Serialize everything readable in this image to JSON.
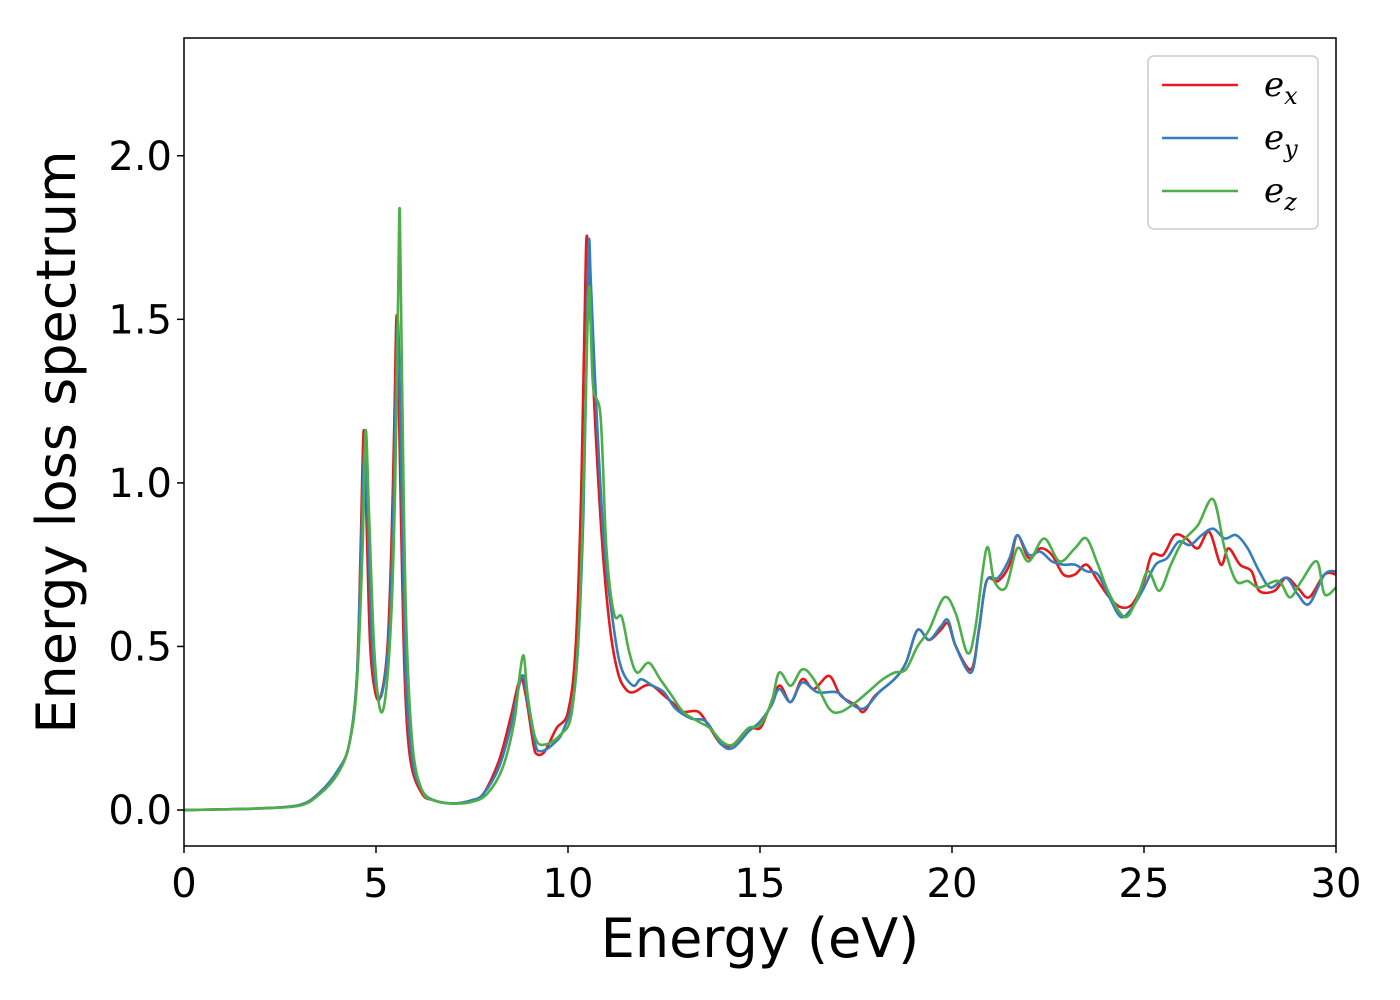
{
  "chart_data": {
    "type": "line",
    "title": "",
    "xlabel": "Energy (eV)",
    "ylabel": "Energy loss spectrum",
    "xlim": [
      0,
      30
    ],
    "ylim": [
      -0.11,
      2.36
    ],
    "xticks": [
      0,
      5,
      10,
      15,
      20,
      25,
      30
    ],
    "xtick_labels": [
      "0",
      "5",
      "10",
      "15",
      "20",
      "25",
      "30"
    ],
    "yticks": [
      0.0,
      0.5,
      1.0,
      1.5,
      2.0
    ],
    "ytick_labels": [
      "0.0",
      "0.5",
      "1.0",
      "1.5",
      "2.0"
    ],
    "grid": false,
    "legend_position": "top-right",
    "series": [
      {
        "name": "e_x",
        "label_base": "e",
        "label_sub": "x",
        "color": "#e41a1c",
        "points": [
          [
            0,
            0
          ],
          [
            1,
            0.002
          ],
          [
            2,
            0.005
          ],
          [
            3,
            0.015
          ],
          [
            3.5,
            0.05
          ],
          [
            4,
            0.12
          ],
          [
            4.3,
            0.2
          ],
          [
            4.5,
            0.4
          ],
          [
            4.6,
            0.8
          ],
          [
            4.68,
            1.16
          ],
          [
            4.75,
            0.9
          ],
          [
            4.85,
            0.5
          ],
          [
            5.0,
            0.35
          ],
          [
            5.15,
            0.36
          ],
          [
            5.3,
            0.5
          ],
          [
            5.4,
            0.8
          ],
          [
            5.48,
            1.2
          ],
          [
            5.53,
            1.5
          ],
          [
            5.57,
            1.4
          ],
          [
            5.65,
            0.9
          ],
          [
            5.75,
            0.4
          ],
          [
            5.9,
            0.15
          ],
          [
            6.2,
            0.05
          ],
          [
            6.5,
            0.03
          ],
          [
            7.0,
            0.02
          ],
          [
            7.5,
            0.03
          ],
          [
            7.8,
            0.05
          ],
          [
            8.2,
            0.15
          ],
          [
            8.5,
            0.28
          ],
          [
            8.75,
            0.4
          ],
          [
            8.9,
            0.35
          ],
          [
            9.1,
            0.2
          ],
          [
            9.2,
            0.17
          ],
          [
            9.4,
            0.18
          ],
          [
            9.7,
            0.25
          ],
          [
            10.0,
            0.3
          ],
          [
            10.2,
            0.5
          ],
          [
            10.35,
            1.0
          ],
          [
            10.47,
            1.72
          ],
          [
            10.55,
            1.6
          ],
          [
            10.7,
            1.2
          ],
          [
            10.9,
            0.8
          ],
          [
            11.1,
            0.55
          ],
          [
            11.3,
            0.42
          ],
          [
            11.5,
            0.37
          ],
          [
            11.7,
            0.36
          ],
          [
            12.0,
            0.38
          ],
          [
            12.2,
            0.38
          ],
          [
            12.5,
            0.35
          ],
          [
            12.8,
            0.32
          ],
          [
            13.0,
            0.3
          ],
          [
            13.4,
            0.3
          ],
          [
            13.7,
            0.25
          ],
          [
            14.0,
            0.2
          ],
          [
            14.3,
            0.2
          ],
          [
            14.7,
            0.25
          ],
          [
            15.0,
            0.25
          ],
          [
            15.2,
            0.3
          ],
          [
            15.5,
            0.38
          ],
          [
            15.8,
            0.33
          ],
          [
            16.1,
            0.4
          ],
          [
            16.4,
            0.37
          ],
          [
            16.8,
            0.41
          ],
          [
            17.1,
            0.35
          ],
          [
            17.5,
            0.32
          ],
          [
            17.7,
            0.3
          ],
          [
            18.0,
            0.35
          ],
          [
            18.5,
            0.4
          ],
          [
            18.8,
            0.45
          ],
          [
            19.1,
            0.55
          ],
          [
            19.4,
            0.52
          ],
          [
            19.7,
            0.55
          ],
          [
            19.9,
            0.57
          ],
          [
            20.1,
            0.5
          ],
          [
            20.5,
            0.43
          ],
          [
            20.7,
            0.55
          ],
          [
            20.9,
            0.7
          ],
          [
            21.2,
            0.7
          ],
          [
            21.5,
            0.75
          ],
          [
            21.7,
            0.84
          ],
          [
            22.0,
            0.77
          ],
          [
            22.3,
            0.8
          ],
          [
            22.6,
            0.78
          ],
          [
            22.9,
            0.72
          ],
          [
            23.2,
            0.72
          ],
          [
            23.5,
            0.75
          ],
          [
            23.8,
            0.7
          ],
          [
            24.1,
            0.65
          ],
          [
            24.4,
            0.62
          ],
          [
            24.7,
            0.63
          ],
          [
            25.0,
            0.7
          ],
          [
            25.2,
            0.78
          ],
          [
            25.5,
            0.78
          ],
          [
            25.8,
            0.84
          ],
          [
            26.1,
            0.83
          ],
          [
            26.4,
            0.8
          ],
          [
            26.7,
            0.85
          ],
          [
            27.0,
            0.75
          ],
          [
            27.2,
            0.8
          ],
          [
            27.5,
            0.75
          ],
          [
            27.8,
            0.73
          ],
          [
            28.0,
            0.67
          ],
          [
            28.4,
            0.67
          ],
          [
            28.7,
            0.71
          ],
          [
            29.0,
            0.68
          ],
          [
            29.3,
            0.65
          ],
          [
            29.7,
            0.72
          ],
          [
            30.0,
            0.72
          ]
        ]
      },
      {
        "name": "e_y",
        "label_base": "e",
        "label_sub": "y",
        "color": "#377eb8",
        "points": [
          [
            0,
            0
          ],
          [
            1,
            0.002
          ],
          [
            2,
            0.005
          ],
          [
            3,
            0.015
          ],
          [
            3.5,
            0.05
          ],
          [
            4,
            0.12
          ],
          [
            4.3,
            0.2
          ],
          [
            4.5,
            0.4
          ],
          [
            4.6,
            0.75
          ],
          [
            4.7,
            1.1
          ],
          [
            4.78,
            0.9
          ],
          [
            4.9,
            0.5
          ],
          [
            5.05,
            0.35
          ],
          [
            5.2,
            0.38
          ],
          [
            5.35,
            0.55
          ],
          [
            5.45,
            0.9
          ],
          [
            5.55,
            1.45
          ],
          [
            5.6,
            1.4
          ],
          [
            5.68,
            0.9
          ],
          [
            5.78,
            0.4
          ],
          [
            5.95,
            0.15
          ],
          [
            6.2,
            0.06
          ],
          [
            6.5,
            0.03
          ],
          [
            7.0,
            0.02
          ],
          [
            7.5,
            0.03
          ],
          [
            7.8,
            0.05
          ],
          [
            8.2,
            0.13
          ],
          [
            8.5,
            0.25
          ],
          [
            8.8,
            0.41
          ],
          [
            8.95,
            0.33
          ],
          [
            9.15,
            0.2
          ],
          [
            9.3,
            0.18
          ],
          [
            9.6,
            0.2
          ],
          [
            9.9,
            0.25
          ],
          [
            10.2,
            0.4
          ],
          [
            10.4,
            0.9
          ],
          [
            10.53,
            1.7
          ],
          [
            10.6,
            1.6
          ],
          [
            10.75,
            1.2
          ],
          [
            10.95,
            0.8
          ],
          [
            11.2,
            0.55
          ],
          [
            11.4,
            0.43
          ],
          [
            11.7,
            0.38
          ],
          [
            11.9,
            0.4
          ],
          [
            12.2,
            0.38
          ],
          [
            12.5,
            0.36
          ],
          [
            12.8,
            0.31
          ],
          [
            13.2,
            0.28
          ],
          [
            13.6,
            0.27
          ],
          [
            14.0,
            0.2
          ],
          [
            14.3,
            0.19
          ],
          [
            14.7,
            0.24
          ],
          [
            15.0,
            0.27
          ],
          [
            15.3,
            0.32
          ],
          [
            15.5,
            0.37
          ],
          [
            15.8,
            0.33
          ],
          [
            16.1,
            0.39
          ],
          [
            16.5,
            0.36
          ],
          [
            17.0,
            0.36
          ],
          [
            17.3,
            0.33
          ],
          [
            17.7,
            0.31
          ],
          [
            18.1,
            0.36
          ],
          [
            18.5,
            0.4
          ],
          [
            18.8,
            0.45
          ],
          [
            19.1,
            0.55
          ],
          [
            19.4,
            0.52
          ],
          [
            19.7,
            0.56
          ],
          [
            19.9,
            0.58
          ],
          [
            20.1,
            0.5
          ],
          [
            20.5,
            0.42
          ],
          [
            20.7,
            0.55
          ],
          [
            20.9,
            0.7
          ],
          [
            21.2,
            0.71
          ],
          [
            21.5,
            0.77
          ],
          [
            21.7,
            0.84
          ],
          [
            22.0,
            0.78
          ],
          [
            22.3,
            0.79
          ],
          [
            22.6,
            0.76
          ],
          [
            22.9,
            0.75
          ],
          [
            23.2,
            0.75
          ],
          [
            23.5,
            0.73
          ],
          [
            23.8,
            0.72
          ],
          [
            24.1,
            0.65
          ],
          [
            24.4,
            0.59
          ],
          [
            24.7,
            0.62
          ],
          [
            25.0,
            0.68
          ],
          [
            25.3,
            0.75
          ],
          [
            25.6,
            0.77
          ],
          [
            25.9,
            0.82
          ],
          [
            26.2,
            0.81
          ],
          [
            26.5,
            0.84
          ],
          [
            26.8,
            0.86
          ],
          [
            27.1,
            0.83
          ],
          [
            27.4,
            0.84
          ],
          [
            27.7,
            0.8
          ],
          [
            28.0,
            0.73
          ],
          [
            28.3,
            0.68
          ],
          [
            28.7,
            0.71
          ],
          [
            29.0,
            0.66
          ],
          [
            29.3,
            0.63
          ],
          [
            29.7,
            0.72
          ],
          [
            30.0,
            0.73
          ]
        ]
      },
      {
        "name": "e_z",
        "label_base": "e",
        "label_sub": "z",
        "color": "#4daf4a",
        "points": [
          [
            0,
            0
          ],
          [
            1,
            0.002
          ],
          [
            2,
            0.005
          ],
          [
            3,
            0.013
          ],
          [
            3.5,
            0.045
          ],
          [
            4,
            0.11
          ],
          [
            4.3,
            0.2
          ],
          [
            4.5,
            0.38
          ],
          [
            4.65,
            0.8
          ],
          [
            4.73,
            1.16
          ],
          [
            4.82,
            0.9
          ],
          [
            4.95,
            0.5
          ],
          [
            5.1,
            0.31
          ],
          [
            5.25,
            0.35
          ],
          [
            5.4,
            0.6
          ],
          [
            5.5,
            1.0
          ],
          [
            5.58,
            1.6
          ],
          [
            5.62,
            1.83
          ],
          [
            5.68,
            1.3
          ],
          [
            5.78,
            0.6
          ],
          [
            5.95,
            0.2
          ],
          [
            6.2,
            0.06
          ],
          [
            6.5,
            0.03
          ],
          [
            7.0,
            0.02
          ],
          [
            7.5,
            0.025
          ],
          [
            7.9,
            0.05
          ],
          [
            8.3,
            0.13
          ],
          [
            8.6,
            0.27
          ],
          [
            8.75,
            0.42
          ],
          [
            8.85,
            0.47
          ],
          [
            8.95,
            0.35
          ],
          [
            9.15,
            0.22
          ],
          [
            9.4,
            0.2
          ],
          [
            9.8,
            0.23
          ],
          [
            10.1,
            0.3
          ],
          [
            10.3,
            0.6
          ],
          [
            10.45,
            1.2
          ],
          [
            10.55,
            1.6
          ],
          [
            10.65,
            1.3
          ],
          [
            10.85,
            1.2
          ],
          [
            11.0,
            0.8
          ],
          [
            11.2,
            0.6
          ],
          [
            11.4,
            0.59
          ],
          [
            11.6,
            0.48
          ],
          [
            11.8,
            0.42
          ],
          [
            12.1,
            0.45
          ],
          [
            12.4,
            0.4
          ],
          [
            12.7,
            0.35
          ],
          [
            13.0,
            0.3
          ],
          [
            13.4,
            0.27
          ],
          [
            13.7,
            0.25
          ],
          [
            14.0,
            0.21
          ],
          [
            14.3,
            0.2
          ],
          [
            14.7,
            0.25
          ],
          [
            15.0,
            0.26
          ],
          [
            15.3,
            0.33
          ],
          [
            15.5,
            0.42
          ],
          [
            15.8,
            0.38
          ],
          [
            16.1,
            0.43
          ],
          [
            16.4,
            0.4
          ],
          [
            16.8,
            0.31
          ],
          [
            17.1,
            0.3
          ],
          [
            17.5,
            0.33
          ],
          [
            17.9,
            0.37
          ],
          [
            18.2,
            0.4
          ],
          [
            18.5,
            0.42
          ],
          [
            18.8,
            0.43
          ],
          [
            19.1,
            0.5
          ],
          [
            19.4,
            0.55
          ],
          [
            19.8,
            0.65
          ],
          [
            20.1,
            0.6
          ],
          [
            20.4,
            0.48
          ],
          [
            20.6,
            0.55
          ],
          [
            20.9,
            0.8
          ],
          [
            21.1,
            0.7
          ],
          [
            21.4,
            0.68
          ],
          [
            21.7,
            0.8
          ],
          [
            22.0,
            0.76
          ],
          [
            22.4,
            0.83
          ],
          [
            22.8,
            0.76
          ],
          [
            23.2,
            0.8
          ],
          [
            23.5,
            0.83
          ],
          [
            23.8,
            0.75
          ],
          [
            24.1,
            0.66
          ],
          [
            24.5,
            0.59
          ],
          [
            24.8,
            0.64
          ],
          [
            25.1,
            0.73
          ],
          [
            25.4,
            0.67
          ],
          [
            25.7,
            0.75
          ],
          [
            26.0,
            0.82
          ],
          [
            26.4,
            0.87
          ],
          [
            26.8,
            0.95
          ],
          [
            27.1,
            0.8
          ],
          [
            27.4,
            0.7
          ],
          [
            27.7,
            0.7
          ],
          [
            28.0,
            0.68
          ],
          [
            28.5,
            0.7
          ],
          [
            28.8,
            0.65
          ],
          [
            29.1,
            0.7
          ],
          [
            29.5,
            0.76
          ],
          [
            29.7,
            0.66
          ],
          [
            30.0,
            0.68
          ]
        ]
      }
    ]
  }
}
